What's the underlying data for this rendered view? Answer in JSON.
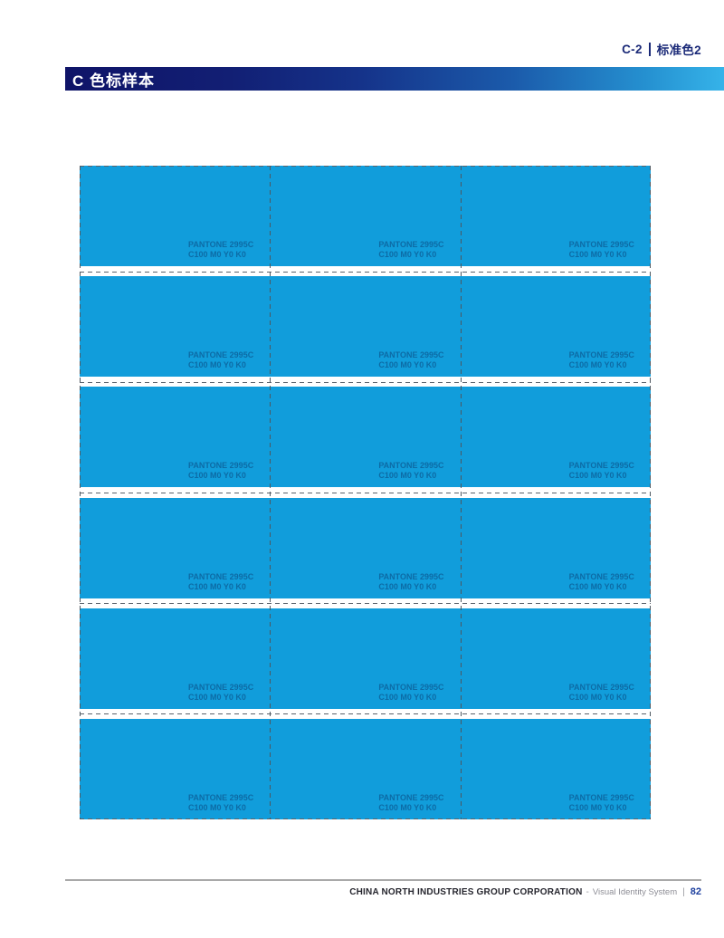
{
  "page_tag": {
    "code": "C-2",
    "label": "标准色2"
  },
  "header": {
    "title": "C 色标样本"
  },
  "swatch_sheet": {
    "rows": 6,
    "cols": 3,
    "swatch": {
      "pantone": "PANTONE 2995C",
      "cmyk": "C100 M0 Y0 K0"
    },
    "colors": {
      "swatch_fill": "#119ddb",
      "label_text": "#0d6ba5"
    }
  },
  "footer": {
    "company": "CHINA NORTH INDUSTRIES GROUP CORPORATION",
    "separator": "-",
    "system": "Visual Identity System",
    "divider": "|",
    "page_number": "82"
  }
}
